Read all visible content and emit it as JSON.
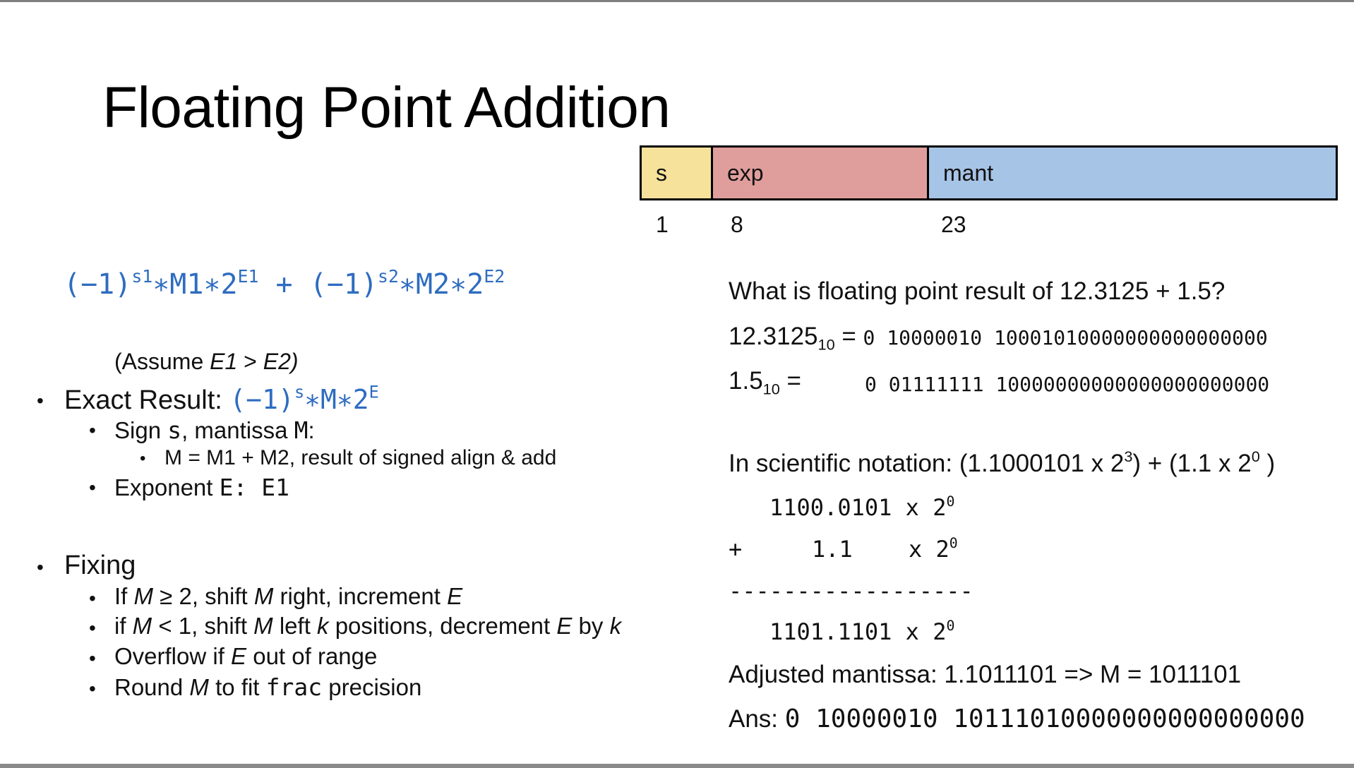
{
  "slide": {
    "title": "Floating Point Addition"
  },
  "format": {
    "fields": [
      {
        "label": "s",
        "bits": "1",
        "color": "#f7e29b"
      },
      {
        "label": "exp",
        "bits": "8",
        "color": "#df9e9c"
      },
      {
        "label": "mant",
        "bits": "23",
        "color": "#a6c4e6"
      }
    ]
  },
  "formula": {
    "neg1_a": "(−1)",
    "s1": "s1",
    "mid_a": "∗M1∗2",
    "E1": "E1",
    "plus": " + ",
    "neg1_b": "(−1)",
    "s2": "s2",
    "mid_b": "∗M2∗2",
    "E2": "E2"
  },
  "left": {
    "assume_open": "(Assume ",
    "assume_e1": "E1",
    "assume_gt": " > ",
    "assume_e2": "E2)",
    "exact_label": "Exact Result: ",
    "exact_neg1": "(−1)",
    "exact_s": "s",
    "exact_mid": "∗M∗2",
    "exact_E": "E",
    "sign_text": "Sign ",
    "sign_s": "s",
    "sign_mid": ", mantissa ",
    "sign_M": "M",
    "sign_colon": ":",
    "m_line": "M = M1 + M2, result of signed align & add",
    "exp_text": "Exponent ",
    "exp_E": "E",
    "exp_colon": ": ",
    "exp_E1": "E1",
    "fixing": "Fixing",
    "fix1_a": "If ",
    "fix1_M": "M",
    "fix1_b": " ≥ 2, shift ",
    "fix1_M2": "M",
    "fix1_c": " right, increment ",
    "fix1_E": "E",
    "fix2_a": "if ",
    "fix2_M": "M",
    "fix2_b": " < 1, shift ",
    "fix2_M2": "M",
    "fix2_c": " left ",
    "fix2_k": "k",
    "fix2_d": " positions, decrement ",
    "fix2_E": "E",
    "fix2_e": " by ",
    "fix2_k2": "k",
    "fix3_a": "Overflow if ",
    "fix3_E": "E",
    "fix3_b": " out of range",
    "fix4_a": "Round ",
    "fix4_M": "M",
    "fix4_b": " to fit ",
    "fix4_frac": "frac",
    "fix4_c": " precision"
  },
  "right": {
    "question": "What is floating point result of 12.3125 + 1.5?",
    "n1_val": "12.3125",
    "n1_base": "10",
    "n1_eq": " = ",
    "n1_bits": "0 10000010 10001010000000000000000",
    "n2_val": "1.5",
    "n2_base": "10",
    "n2_eq": " =",
    "n2_bits": "0 01111111 10000000000000000000000",
    "sci_a": "In scientific notation: (1.1000101 x 2",
    "sci_exp1": "3",
    "sci_b": ") + (1.1 x 2",
    "sci_exp2": "0",
    "sci_c": " )",
    "add1": "1100.0101 x 2",
    "add1_exp": "0",
    "plus_sign": "+",
    "add2": "1.1",
    "add2_x": "x 2",
    "add2_exp": "0",
    "dashes": "------------------",
    "sum": "1101.1101 x 2",
    "sum_exp": "0",
    "adjusted": "Adjusted mantissa: 1.1011101 => M = 1011101",
    "ans_label": "Ans: ",
    "ans_bits": "0 10000010 10111010000000000000000"
  }
}
